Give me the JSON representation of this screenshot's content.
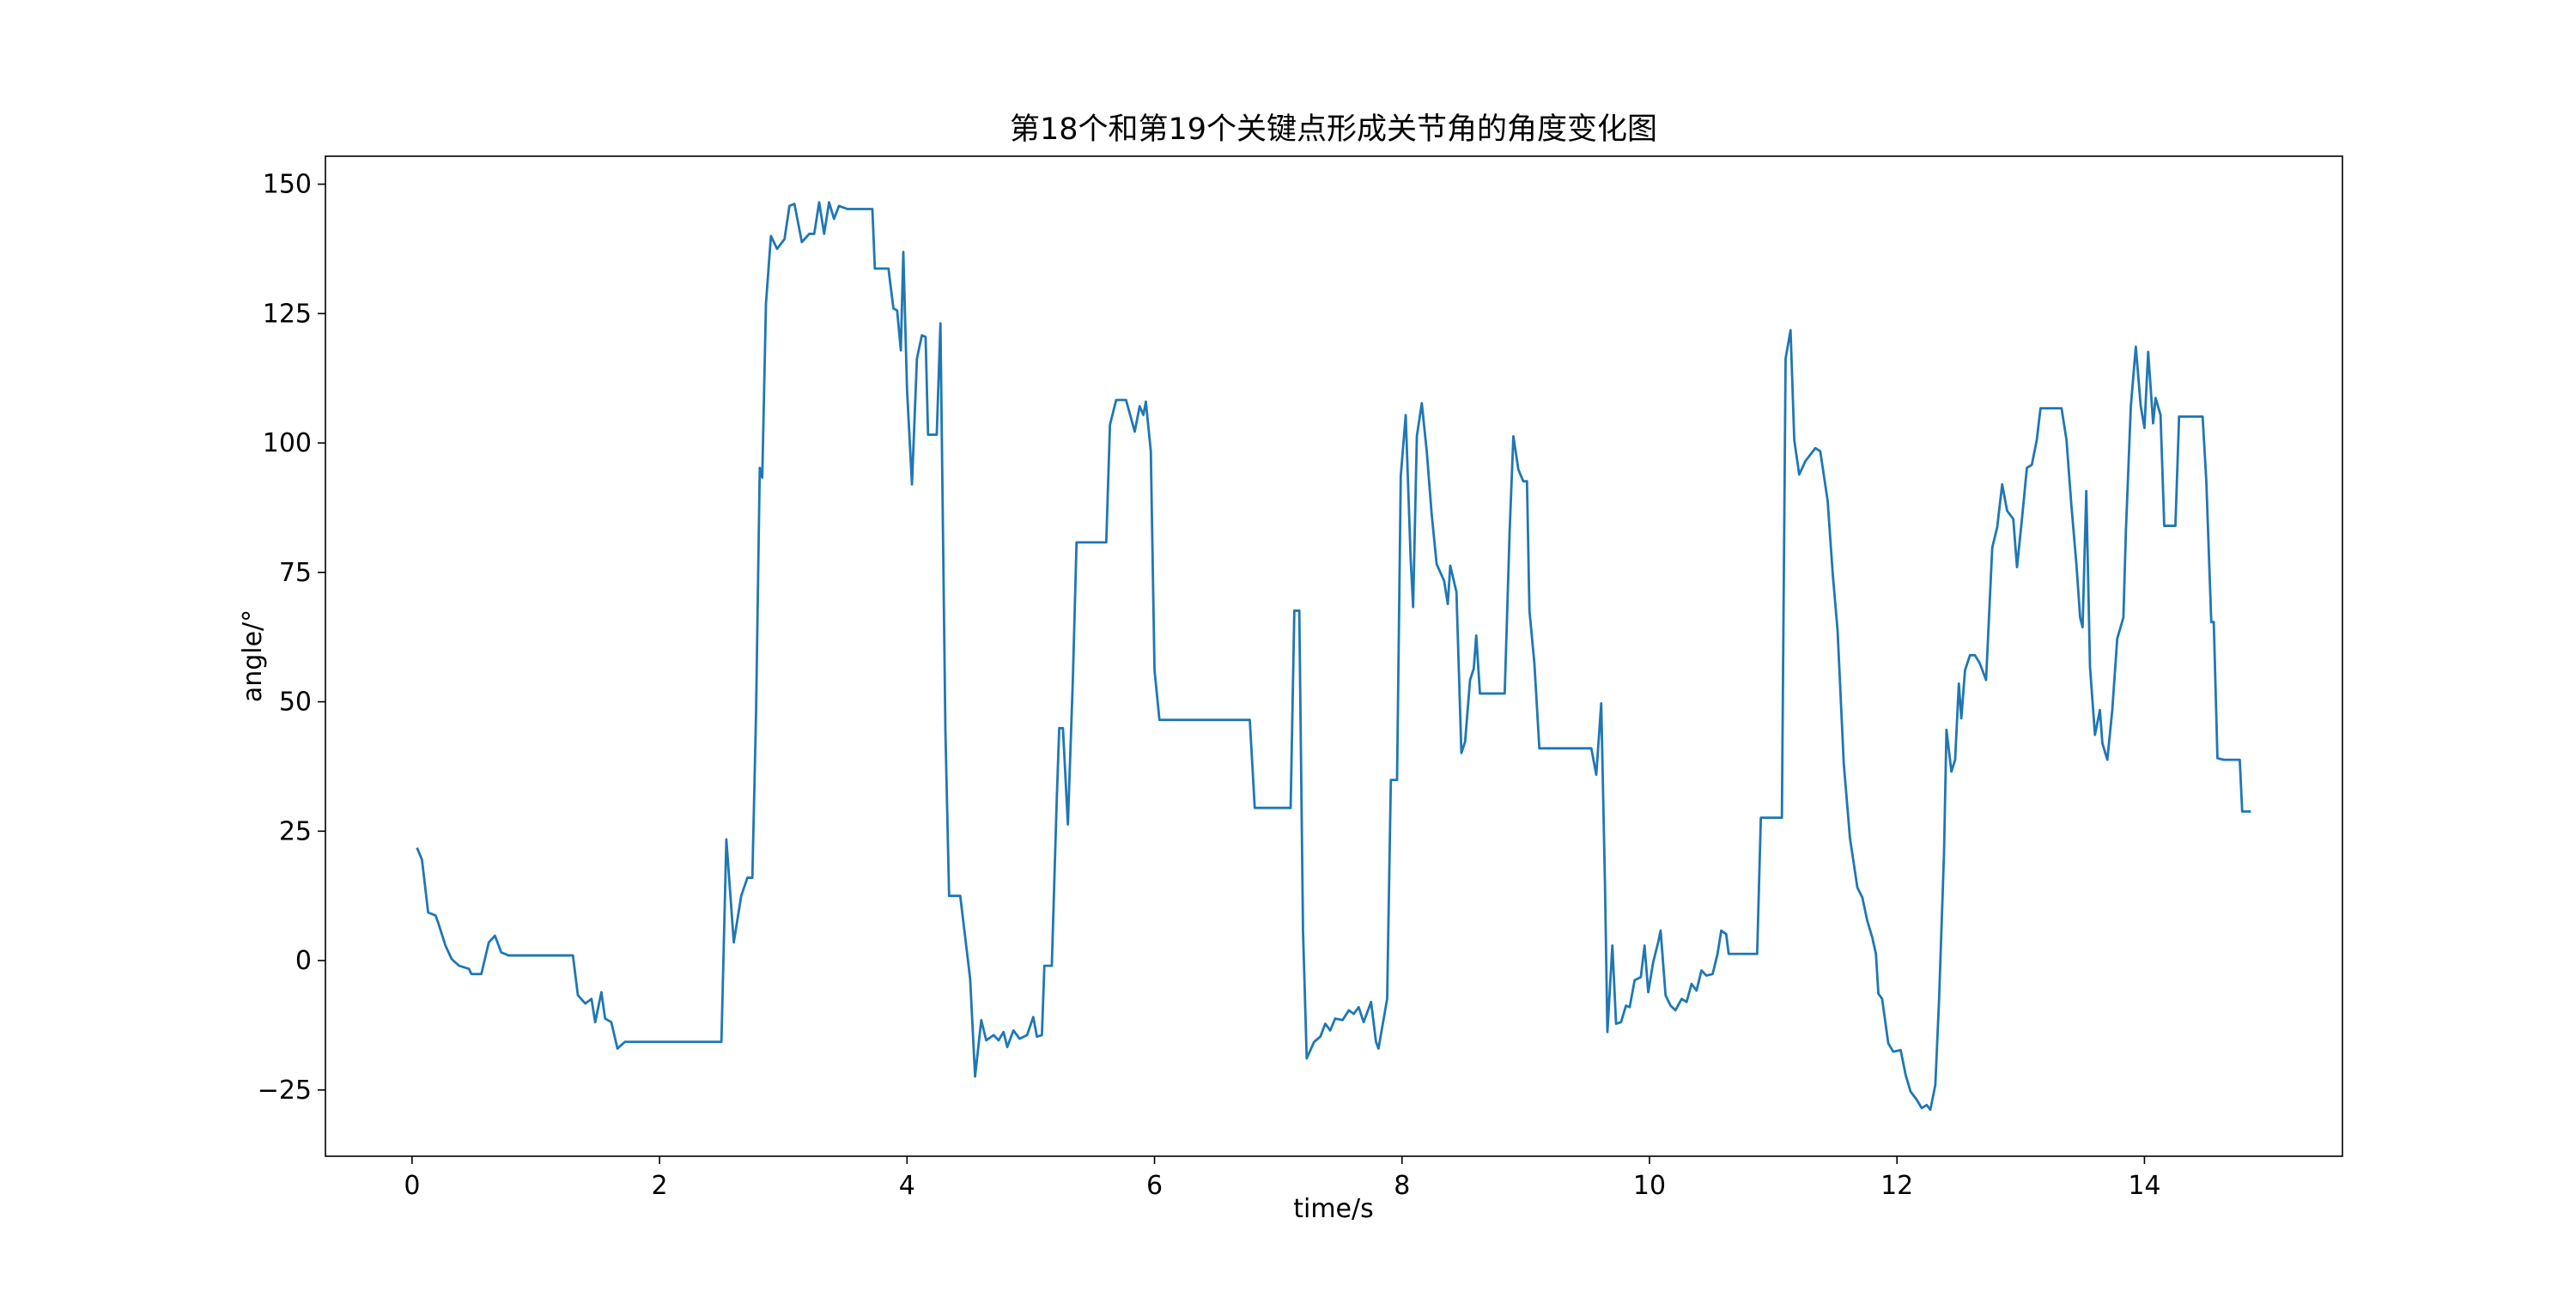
{
  "chart_data": {
    "type": "line",
    "title": "第18个和第19个关键点形成关节角的角度变化图",
    "x_label": "time/s",
    "y_label": "angle/°",
    "xlim": [
      -0.7,
      15.6
    ],
    "ylim": [
      -37.8,
      155.4
    ],
    "xticks": [
      0,
      2,
      4,
      6,
      8,
      10,
      12,
      14
    ],
    "yticks": [
      {
        "value": -25,
        "label": "−25"
      },
      0,
      25,
      50,
      75,
      100,
      125,
      150
    ],
    "grid": false,
    "x": [
      0.04,
      0.08,
      0.13,
      0.19,
      0.21,
      0.27,
      0.32,
      0.38,
      0.46,
      0.48,
      0.56,
      0.62,
      0.67,
      0.72,
      0.78,
      1.3,
      1.34,
      1.4,
      1.45,
      1.48,
      1.53,
      1.56,
      1.61,
      1.66,
      1.72,
      2.5,
      2.54,
      2.6,
      2.66,
      2.71,
      2.75,
      2.78,
      2.81,
      2.83,
      2.86,
      2.9,
      2.95,
      3.01,
      3.05,
      3.09,
      3.15,
      3.21,
      3.25,
      3.29,
      3.33,
      3.37,
      3.41,
      3.45,
      3.52,
      3.72,
      3.74,
      3.85,
      3.89,
      3.92,
      3.95,
      3.97,
      4.0,
      4.04,
      4.08,
      4.12,
      4.15,
      4.17,
      4.24,
      4.27,
      4.31,
      4.34,
      4.43,
      4.51,
      4.55,
      4.6,
      4.64,
      4.7,
      4.74,
      4.78,
      4.81,
      4.86,
      4.91,
      4.97,
      5.02,
      5.05,
      5.09,
      5.11,
      5.17,
      5.21,
      5.23,
      5.26,
      5.3,
      5.34,
      5.37,
      5.61,
      5.64,
      5.69,
      5.77,
      5.84,
      5.88,
      5.91,
      5.93,
      5.97,
      6.0,
      6.04,
      6.77,
      6.81,
      7.1,
      7.13,
      7.17,
      7.2,
      7.23,
      7.29,
      7.34,
      7.38,
      7.42,
      7.46,
      7.52,
      7.57,
      7.61,
      7.65,
      7.69,
      7.75,
      7.79,
      7.81,
      7.88,
      7.91,
      7.96,
      7.99,
      8.03,
      8.07,
      8.09,
      8.12,
      8.16,
      8.2,
      8.24,
      8.28,
      8.34,
      8.37,
      8.39,
      8.44,
      8.48,
      8.51,
      8.55,
      8.58,
      8.6,
      8.63,
      8.83,
      8.87,
      8.9,
      8.94,
      8.98,
      9.01,
      9.03,
      9.07,
      9.11,
      9.53,
      9.57,
      9.61,
      9.64,
      9.66,
      9.7,
      9.73,
      9.77,
      9.81,
      9.84,
      9.88,
      9.93,
      9.96,
      9.99,
      10.03,
      10.07,
      10.09,
      10.13,
      10.17,
      10.21,
      10.26,
      10.3,
      10.34,
      10.38,
      10.42,
      10.46,
      10.51,
      10.55,
      10.58,
      10.62,
      10.64,
      10.87,
      10.9,
      11.07,
      11.1,
      11.14,
      11.17,
      11.21,
      11.26,
      11.34,
      11.38,
      11.44,
      11.48,
      11.52,
      11.57,
      11.62,
      11.68,
      11.72,
      11.76,
      11.8,
      11.83,
      11.85,
      11.88,
      11.93,
      11.97,
      12.03,
      12.07,
      12.11,
      12.16,
      12.2,
      12.24,
      12.27,
      12.31,
      12.34,
      12.38,
      12.4,
      12.44,
      12.47,
      12.5,
      12.52,
      12.55,
      12.59,
      12.63,
      12.67,
      12.72,
      12.77,
      12.81,
      12.85,
      12.89,
      12.94,
      12.97,
      13.01,
      13.05,
      13.09,
      13.13,
      13.16,
      13.33,
      13.37,
      13.41,
      13.45,
      13.48,
      13.5,
      13.53,
      13.56,
      13.6,
      13.64,
      13.66,
      13.7,
      13.74,
      13.78,
      13.83,
      13.85,
      13.89,
      13.93,
      13.97,
      14.0,
      14.03,
      14.07,
      14.09,
      14.13,
      14.16,
      14.25,
      14.28,
      14.47,
      14.5,
      14.54,
      14.56,
      14.59,
      14.64,
      14.77,
      14.79,
      14.86
    ],
    "series": [
      {
        "name": "angle",
        "color": "#1f77b4",
        "values": [
          21.8,
          19.5,
          9.3,
          8.7,
          7.4,
          2.9,
          0.3,
          -1,
          -1.6,
          -2.6,
          -2.6,
          3.5,
          4.8,
          1.6,
          1.0,
          1.0,
          -6.7,
          -8.3,
          -7.4,
          -11.9,
          -6.1,
          -11.2,
          -11.9,
          -17,
          -15.7,
          -15.7,
          23.4,
          3.5,
          12.5,
          16,
          16,
          47.8,
          95.2,
          93.3,
          126.9,
          140,
          137.5,
          139.4,
          145.8,
          146.2,
          138.8,
          140.4,
          140.4,
          146.5,
          140.4,
          146.5,
          143.3,
          145.8,
          145.2,
          145.2,
          133.7,
          133.7,
          126,
          125.6,
          117.9,
          136.9,
          110.3,
          92,
          116.3,
          120.8,
          120.5,
          101.6,
          101.6,
          123.1,
          44.6,
          12.5,
          12.5,
          -3.5,
          -22.4,
          -11.5,
          -15.4,
          -14.4,
          -15.4,
          -13.8,
          -16.7,
          -13.5,
          -15.1,
          -14.4,
          -10.9,
          -14.7,
          -14.4,
          -1,
          -1,
          31.1,
          44.9,
          44.9,
          26.3,
          54.2,
          80.8,
          80.8,
          103.5,
          108.3,
          108.3,
          102.2,
          107.1,
          105.4,
          108,
          98.4,
          56.1,
          46.5,
          46.5,
          29.5,
          29.5,
          67.6,
          67.6,
          5.8,
          -18.9,
          -15.7,
          -14.7,
          -12.2,
          -13.5,
          -11.2,
          -11.5,
          -9.6,
          -10.3,
          -9,
          -11.9,
          -8,
          -15.7,
          -17,
          -7.4,
          34.9,
          34.9,
          93.6,
          105.4,
          77.6,
          68.3,
          101.3,
          107.7,
          98.4,
          86.2,
          76.6,
          73.4,
          68.9,
          76.3,
          71.2,
          40.1,
          42.3,
          54.2,
          56.4,
          62.8,
          51.6,
          51.6,
          83,
          101.3,
          94.9,
          92.6,
          92.6,
          67.6,
          57.4,
          41,
          41,
          35.9,
          49.7,
          15.1,
          -13.8,
          2.9,
          -12.2,
          -11.9,
          -8.7,
          -9,
          -3.8,
          -3.2,
          2.9,
          -6.1,
          -0.3,
          3.5,
          5.8,
          -6.7,
          -8.7,
          -9.6,
          -7.4,
          -8,
          -4.5,
          -5.8,
          -1.9,
          -2.9,
          -2.6,
          1.3,
          5.8,
          5.1,
          1.3,
          1.3,
          27.6,
          27.6,
          116.3,
          121.8,
          100.6,
          93.9,
          96.5,
          99,
          98.4,
          88.8,
          75,
          63.8,
          38.1,
          23.7,
          14.1,
          12.2,
          7.7,
          4.5,
          1.3,
          -6.4,
          -7.4,
          -16,
          -17.6,
          -17.3,
          -22.1,
          -25.3,
          -26.9,
          -28.5,
          -27.9,
          -28.8,
          -24,
          -7.7,
          20.5,
          44.6,
          36.5,
          38.8,
          53.5,
          46.8,
          56.1,
          59,
          59,
          57.4,
          54.2,
          79.8,
          83.7,
          92,
          86.9,
          85.3,
          76,
          85.3,
          95.2,
          95.8,
          100.6,
          106.7,
          106.7,
          100.6,
          87.8,
          76.6,
          66.3,
          64.4,
          90.7,
          56.7,
          43.6,
          48.4,
          42,
          38.8,
          48.4,
          62.2,
          66.3,
          83,
          107.1,
          118.6,
          107.1,
          102.9,
          117.6,
          103.8,
          108.7,
          105.4,
          84,
          84,
          105.1,
          105.1,
          92.6,
          65.4,
          65.4,
          39.1,
          38.8,
          38.8,
          28.8,
          28.8
        ]
      }
    ]
  }
}
